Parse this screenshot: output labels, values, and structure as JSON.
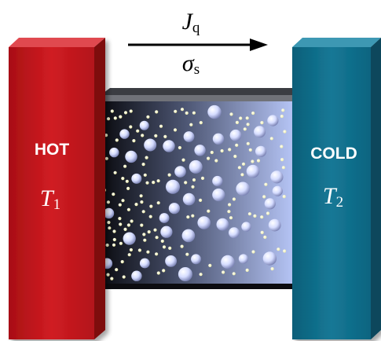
{
  "flux": {
    "symbol": "J",
    "subscript": "q"
  },
  "entropy": {
    "symbol": "σ",
    "subscript": "s"
  },
  "hot": {
    "label": "HOT",
    "temp_symbol": "T",
    "temp_subscript": "1",
    "color": "#c9161d"
  },
  "cold": {
    "label": "COLD",
    "temp_symbol": "T",
    "temp_subscript": "2",
    "color": "#0f6a86"
  },
  "medium": {
    "gradient_dark": "#050508",
    "gradient_light": "#b7c6f7",
    "particle_large_color": "#cfd7ff",
    "particle_small_color": "#fbfbc5"
  }
}
